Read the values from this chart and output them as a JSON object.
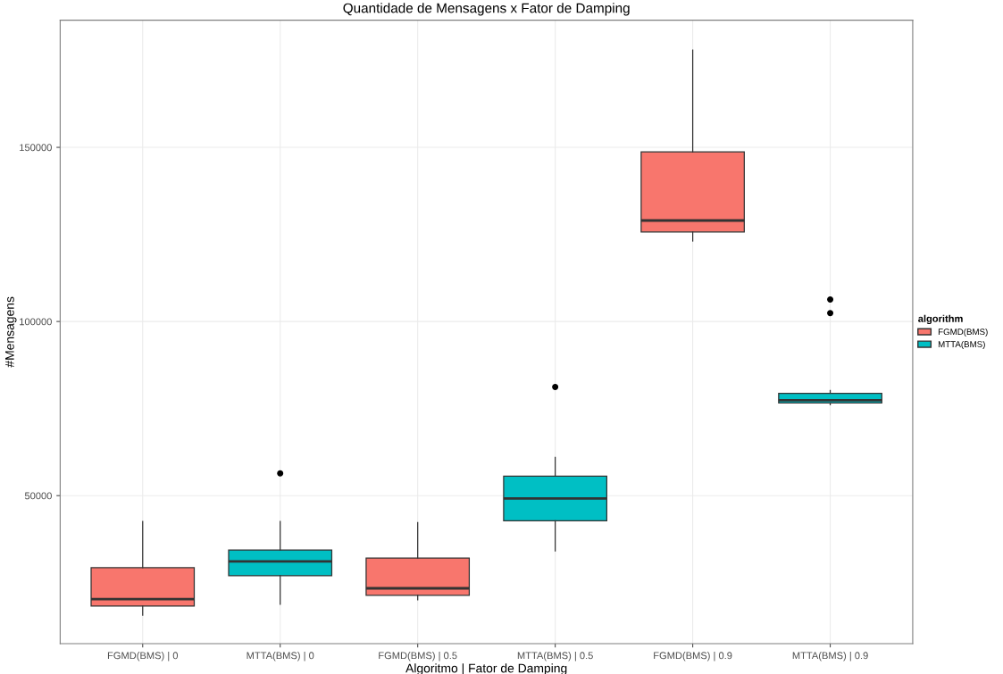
{
  "chart_data": {
    "type": "box",
    "title": "Quantidade de Mensagens x Fator de Damping",
    "xlabel": "Algoritmo | Fator de Damping",
    "ylabel": "#Mensagens",
    "legend_title": "algorithm",
    "categories": [
      "FGMD(BMS) | 0",
      "MTTA(BMS) | 0",
      "FGMD(BMS) | 0.5",
      "MTTA(BMS) | 0.5",
      "FGMD(BMS) | 0.9",
      "MTTA(BMS) | 0.9"
    ],
    "series": [
      {
        "name": "FGMD(BMS)",
        "color": "#f8766d",
        "boxes": [
          {
            "low": 15700,
            "q1": 18300,
            "median": 20300,
            "q3": 29300,
            "high": 42600
          },
          null,
          {
            "low": 20100,
            "q1": 21400,
            "median": 23400,
            "q3": 32100,
            "high": 42300
          },
          null,
          {
            "low": 123100,
            "q1": 125700,
            "median": 129000,
            "q3": 148700,
            "high": 177900
          },
          null
        ]
      },
      {
        "name": "MTTA(BMS)",
        "color": "#00bfc4",
        "boxes": [
          null,
          {
            "low": 18800,
            "q1": 27000,
            "median": 31100,
            "q3": 34400,
            "high": 42600,
            "outliers": [
              56400
            ]
          },
          null,
          {
            "low": 34100,
            "q1": 42800,
            "median": 49200,
            "q3": 55600,
            "high": 61000,
            "outliers": [
              81200
            ]
          },
          null,
          {
            "low": 76100,
            "q1": 76600,
            "median": 77400,
            "q3": 79400,
            "high": 80200,
            "outliers": [
              106300,
              102400
            ]
          }
        ]
      }
    ],
    "ylim": [
      7500,
      186500
    ],
    "yticks": [
      50000,
      100000,
      150000
    ],
    "grid": true,
    "legend": "right"
  }
}
